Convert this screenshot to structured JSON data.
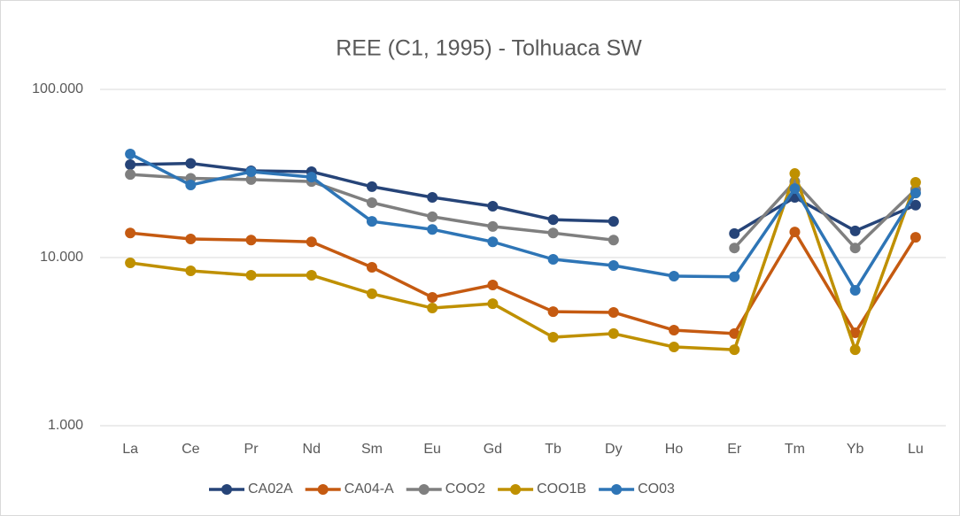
{
  "chart_data": {
    "type": "line",
    "title": "REE (C1, 1995) - Tolhuaca SW",
    "categories": [
      "La",
      "Ce",
      "Pr",
      "Nd",
      "Sm",
      "Eu",
      "Gd",
      "Tb",
      "Dy",
      "Ho",
      "Er",
      "Tm",
      "Yb",
      "Lu"
    ],
    "log_scale": true,
    "grid": true,
    "legend": "bottom",
    "ylim": [
      1,
      100
    ],
    "yticks": [
      {
        "value": 1,
        "label": "1.000"
      },
      {
        "value": 10,
        "label": "10.000"
      },
      {
        "value": 100,
        "label": "100.000"
      }
    ],
    "series": [
      {
        "name": "CA02A",
        "color": "#264478",
        "values": [
          35.7,
          36.3,
          32.8,
          32.4,
          26.4,
          22.8,
          20.2,
          16.8,
          16.4,
          null,
          13.9,
          22.8,
          14.4,
          20.5
        ]
      },
      {
        "name": "CA04-A",
        "color": "#c55a11",
        "values": [
          14.0,
          12.9,
          12.7,
          12.4,
          8.75,
          5.8,
          6.87,
          4.77,
          4.72,
          3.7,
          3.53,
          14.2,
          3.57,
          13.2
        ]
      },
      {
        "name": "COO2",
        "color": "#7f7f7f",
        "values": [
          31.2,
          29.6,
          29.1,
          28.3,
          21.2,
          17.5,
          15.3,
          14.0,
          12.7,
          null,
          11.4,
          28.3,
          11.4,
          25.4
        ]
      },
      {
        "name": "COO1B",
        "color": "#bf9000",
        "values": [
          9.3,
          8.34,
          7.85,
          7.85,
          6.09,
          5.01,
          5.32,
          3.36,
          3.53,
          2.94,
          2.83,
          31.6,
          2.83,
          28.0
        ]
      },
      {
        "name": "CO03",
        "color": "#2e75b6",
        "values": [
          41.3,
          27.0,
          32.4,
          30.1,
          16.4,
          14.7,
          12.4,
          9.76,
          8.97,
          7.75,
          7.68,
          25.7,
          6.39,
          24.2
        ]
      }
    ]
  }
}
